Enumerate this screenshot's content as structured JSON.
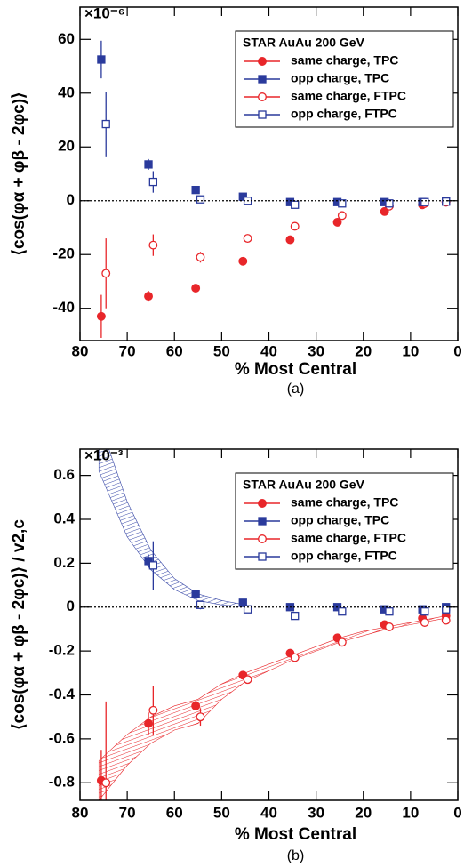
{
  "chart_data": [
    {
      "type": "scatter",
      "caption": "(a)",
      "x_label": "% Most Central",
      "y_label": "⟨cos(φα + φβ - 2φc)⟩",
      "scale_label": "×10⁻⁶",
      "legend_title": "STAR AuAu 200 GeV",
      "legend": "upper right",
      "xlim": [
        80,
        0
      ],
      "xticks": [
        80,
        70,
        60,
        50,
        40,
        30,
        20,
        10,
        0
      ],
      "ylim": [
        -52,
        72
      ],
      "yticks": [
        -40,
        -20,
        0,
        20,
        40,
        60
      ],
      "series": [
        {
          "name": "same charge, TPC",
          "color": "#e8262a",
          "marker": "circle",
          "filled": true,
          "x": [
            75.5,
            65.5,
            55.5,
            45.5,
            35.5,
            25.5,
            15.5,
            7.5,
            2.5
          ],
          "values": [
            -43,
            -35.5,
            -32.5,
            -22.5,
            -14.5,
            -8,
            -4,
            -1.5,
            -0.5
          ],
          "errors": [
            8,
            2,
            1,
            1,
            1,
            1,
            1,
            1,
            0.5
          ]
        },
        {
          "name": "opp charge, TPC",
          "color": "#2a3a9c",
          "marker": "square",
          "filled": true,
          "x": [
            75.5,
            65.5,
            55.5,
            45.5,
            35.5,
            25.5,
            15.5,
            7.5,
            2.5
          ],
          "values": [
            52.5,
            13.5,
            4,
            1.5,
            -0.5,
            -0.5,
            -0.5,
            -0.5,
            -0.3
          ],
          "errors": [
            7,
            2,
            1,
            1,
            1,
            1,
            1,
            1,
            0.5
          ]
        },
        {
          "name": "same charge, FTPC",
          "color": "#e8262a",
          "marker": "circle",
          "filled": false,
          "x": [
            74.5,
            64.5,
            54.5,
            44.5,
            34.5,
            24.5,
            14.5,
            7,
            2.5
          ],
          "values": [
            -27,
            -16.5,
            -21,
            -14,
            -9.5,
            -5.5,
            -2,
            -1,
            -0.5
          ],
          "errors": [
            13,
            4,
            2,
            1,
            1,
            1,
            1,
            1,
            0.5
          ]
        },
        {
          "name": "opp charge, FTPC",
          "color": "#2a3a9c",
          "marker": "square",
          "filled": false,
          "x": [
            74.5,
            64.5,
            54.5,
            44.5,
            34.5,
            24.5,
            14.5,
            7,
            2.5
          ],
          "values": [
            28.5,
            7,
            0.5,
            0,
            -1.5,
            -1,
            -1,
            -0.5,
            -0.3
          ],
          "errors": [
            12,
            4,
            1,
            1,
            1,
            1,
            1,
            1,
            0.5
          ]
        }
      ]
    },
    {
      "type": "scatter",
      "caption": "(b)",
      "x_label": "% Most Central",
      "y_label": "⟨cos(φα + φβ - 2φc)⟩ / v2,c",
      "scale_label": "×10⁻³",
      "legend_title": "STAR AuAu 200 GeV",
      "legend": "upper right",
      "xlim": [
        80,
        0
      ],
      "xticks": [
        80,
        70,
        60,
        50,
        40,
        30,
        20,
        10,
        0
      ],
      "ylim": [
        -0.88,
        0.72
      ],
      "yticks": [
        -0.8,
        -0.6,
        -0.4,
        -0.2,
        0,
        0.2,
        0.4,
        0.6
      ],
      "bands": [
        {
          "color": "#3a4aa8",
          "x": [
            76,
            70,
            65,
            60,
            55,
            50,
            45
          ],
          "lower": [
            0.62,
            0.32,
            0.17,
            0.08,
            0.03,
            0.01,
            0
          ],
          "upper": [
            0.85,
            0.48,
            0.26,
            0.13,
            0.06,
            0.03,
            0.01
          ]
        },
        {
          "color": "#e8262a",
          "x": [
            76,
            70,
            65,
            60,
            55,
            50,
            45,
            40,
            35,
            30,
            25,
            20,
            15,
            10,
            5,
            2.5
          ],
          "lower": [
            -0.88,
            -0.72,
            -0.62,
            -0.56,
            -0.53,
            -0.42,
            -0.34,
            -0.29,
            -0.24,
            -0.2,
            -0.16,
            -0.13,
            -0.1,
            -0.08,
            -0.06,
            -0.05
          ],
          "upper": [
            -0.7,
            -0.58,
            -0.5,
            -0.45,
            -0.42,
            -0.35,
            -0.3,
            -0.26,
            -0.22,
            -0.18,
            -0.14,
            -0.11,
            -0.09,
            -0.07,
            -0.05,
            -0.04
          ]
        }
      ],
      "series": [
        {
          "name": "same charge, TPC",
          "color": "#e8262a",
          "marker": "circle",
          "filled": true,
          "x": [
            75.5,
            65.5,
            55.5,
            45.5,
            35.5,
            25.5,
            15.5,
            7.5,
            2.5
          ],
          "values": [
            -0.79,
            -0.53,
            -0.45,
            -0.31,
            -0.21,
            -0.14,
            -0.08,
            -0.05,
            -0.04
          ],
          "errors": [
            0.14,
            0.05,
            0.02,
            0.01,
            0.01,
            0.01,
            0.01,
            0.01,
            0.01
          ]
        },
        {
          "name": "opp charge, TPC",
          "color": "#2a3a9c",
          "marker": "square",
          "filled": true,
          "x": [
            65.5,
            55.5,
            45.5,
            35.5,
            25.5,
            15.5,
            7.5,
            2.5
          ],
          "values": [
            0.21,
            0.06,
            0.02,
            0,
            0,
            -0.01,
            -0.01,
            0
          ],
          "errors": [
            0.03,
            0.01,
            0.01,
            0.01,
            0.01,
            0.01,
            0.01,
            0.01
          ]
        },
        {
          "name": "same charge, FTPC",
          "color": "#e8262a",
          "marker": "circle",
          "filled": false,
          "x": [
            74.5,
            64.5,
            54.5,
            44.5,
            34.5,
            24.5,
            14.5,
            7,
            2.5
          ],
          "values": [
            -0.8,
            -0.47,
            -0.5,
            -0.33,
            -0.23,
            -0.16,
            -0.09,
            -0.07,
            -0.06
          ],
          "errors": [
            0.37,
            0.11,
            0.04,
            0.01,
            0.01,
            0.01,
            0.01,
            0.01,
            0.01
          ]
        },
        {
          "name": "opp charge, FTPC",
          "color": "#2a3a9c",
          "marker": "square",
          "filled": false,
          "x": [
            64.5,
            54.5,
            44.5,
            34.5,
            24.5,
            14.5,
            7,
            2.5
          ],
          "values": [
            0.19,
            0.01,
            -0.01,
            -0.04,
            -0.02,
            -0.02,
            -0.02,
            -0.01
          ],
          "errors": [
            0.11,
            0.02,
            0.01,
            0.01,
            0.01,
            0.01,
            0.01,
            0.01
          ]
        }
      ]
    }
  ]
}
